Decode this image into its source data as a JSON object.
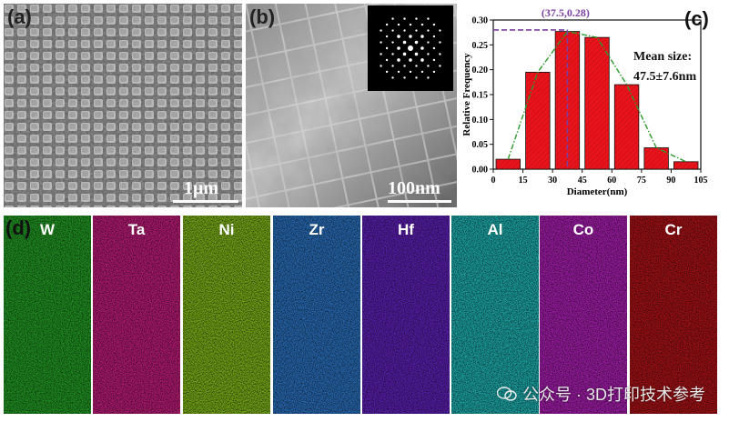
{
  "panels": {
    "a": {
      "label": "(a)",
      "scale": "1μm"
    },
    "b": {
      "label": "(b)",
      "scale": "100nm"
    },
    "c": {
      "label": "(c)"
    },
    "d": {
      "label": "(d)"
    }
  },
  "chart_data": {
    "type": "bar",
    "x": [
      7.5,
      22.5,
      37.5,
      52.5,
      67.5,
      82.5,
      97.5
    ],
    "values": [
      0.02,
      0.195,
      0.277,
      0.265,
      0.17,
      0.043,
      0.015
    ],
    "bin_width": 15,
    "xlabel": "Diameter(nm)",
    "ylabel": "Relative Frequency",
    "xticks": [
      0,
      15,
      30,
      45,
      60,
      75,
      90,
      105
    ],
    "yticks": [
      0.0,
      0.05,
      0.1,
      0.15,
      0.2,
      0.25,
      0.3
    ],
    "xtick_labels": [
      "0",
      "15",
      "30",
      "45",
      "60",
      "75",
      "90",
      "105"
    ],
    "ytick_labels": [
      "0.00",
      "0.05",
      "0.10",
      "0.15",
      "0.20",
      "0.25",
      "0.30"
    ],
    "xlim": [
      0,
      105
    ],
    "ylim": [
      0,
      0.3
    ],
    "fit_curve": {
      "x": [
        7.5,
        22.5,
        37.5,
        52.5,
        67.5,
        82.5,
        97.5
      ],
      "y": [
        0.02,
        0.195,
        0.277,
        0.265,
        0.17,
        0.043,
        0.015
      ]
    },
    "peak_annotation": {
      "text": "(37.5,0.28)",
      "x": 37.5,
      "y": 0.28
    },
    "mean_text_line1": "Mean size:",
    "mean_text_line2": "47.5±7.6nm",
    "colors": {
      "bar": "#e8131b",
      "fit": "#2a9a2a",
      "marker": "#7b3fa0"
    }
  },
  "maps": [
    {
      "element": "W",
      "color": "#27b02a"
    },
    {
      "element": "Ta",
      "color": "#d8208a"
    },
    {
      "element": "Ni",
      "color": "#8fcc1c"
    },
    {
      "element": "Zr",
      "color": "#2f7fd6"
    },
    {
      "element": "Hf",
      "color": "#6a24d0"
    },
    {
      "element": "Al",
      "color": "#22c6c6"
    },
    {
      "element": "Co",
      "color": "#c022c8"
    },
    {
      "element": "Cr",
      "color": "#c4151b"
    }
  ],
  "watermark": "公众号 · 3D打印技术参考"
}
